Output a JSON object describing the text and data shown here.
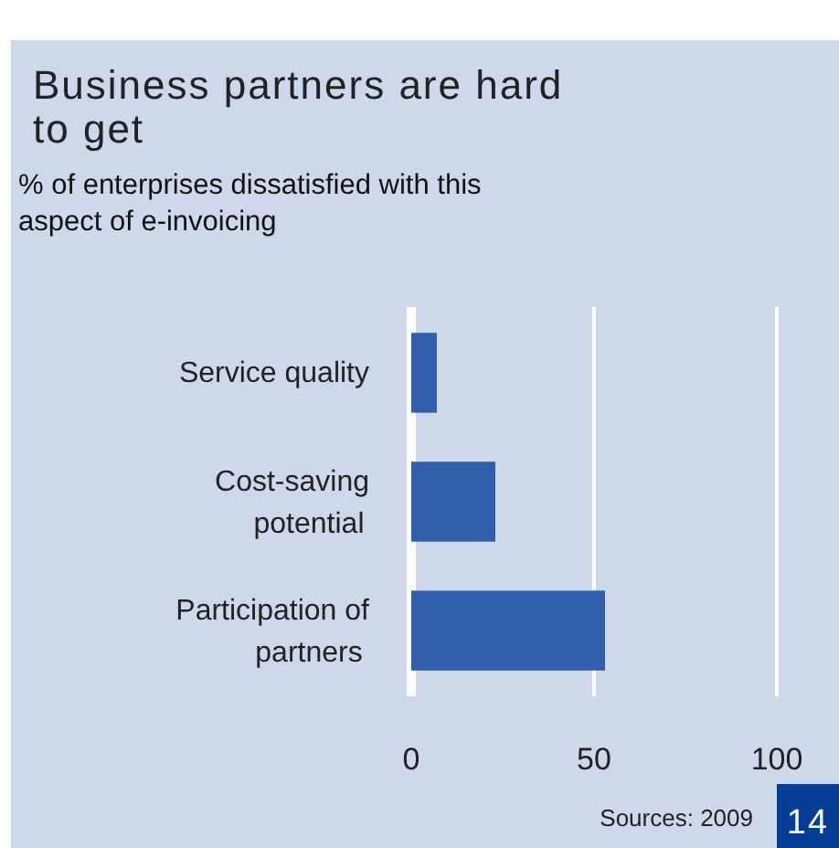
{
  "chart_data": {
    "type": "bar",
    "orientation": "horizontal",
    "title": "Business partners are hard to get",
    "subtitle": "% of enterprises dissatisfied with this aspect of e-invoicing",
    "categories": [
      "Service quality",
      "Cost-saving potential",
      "Participation of partners"
    ],
    "values": [
      7,
      23,
      53
    ],
    "color": "#325fab",
    "xlim": [
      0,
      100
    ],
    "xticks": [
      0,
      50,
      100
    ],
    "grid": "x",
    "annotations": [
      "Sources: 2009",
      "14"
    ]
  }
}
